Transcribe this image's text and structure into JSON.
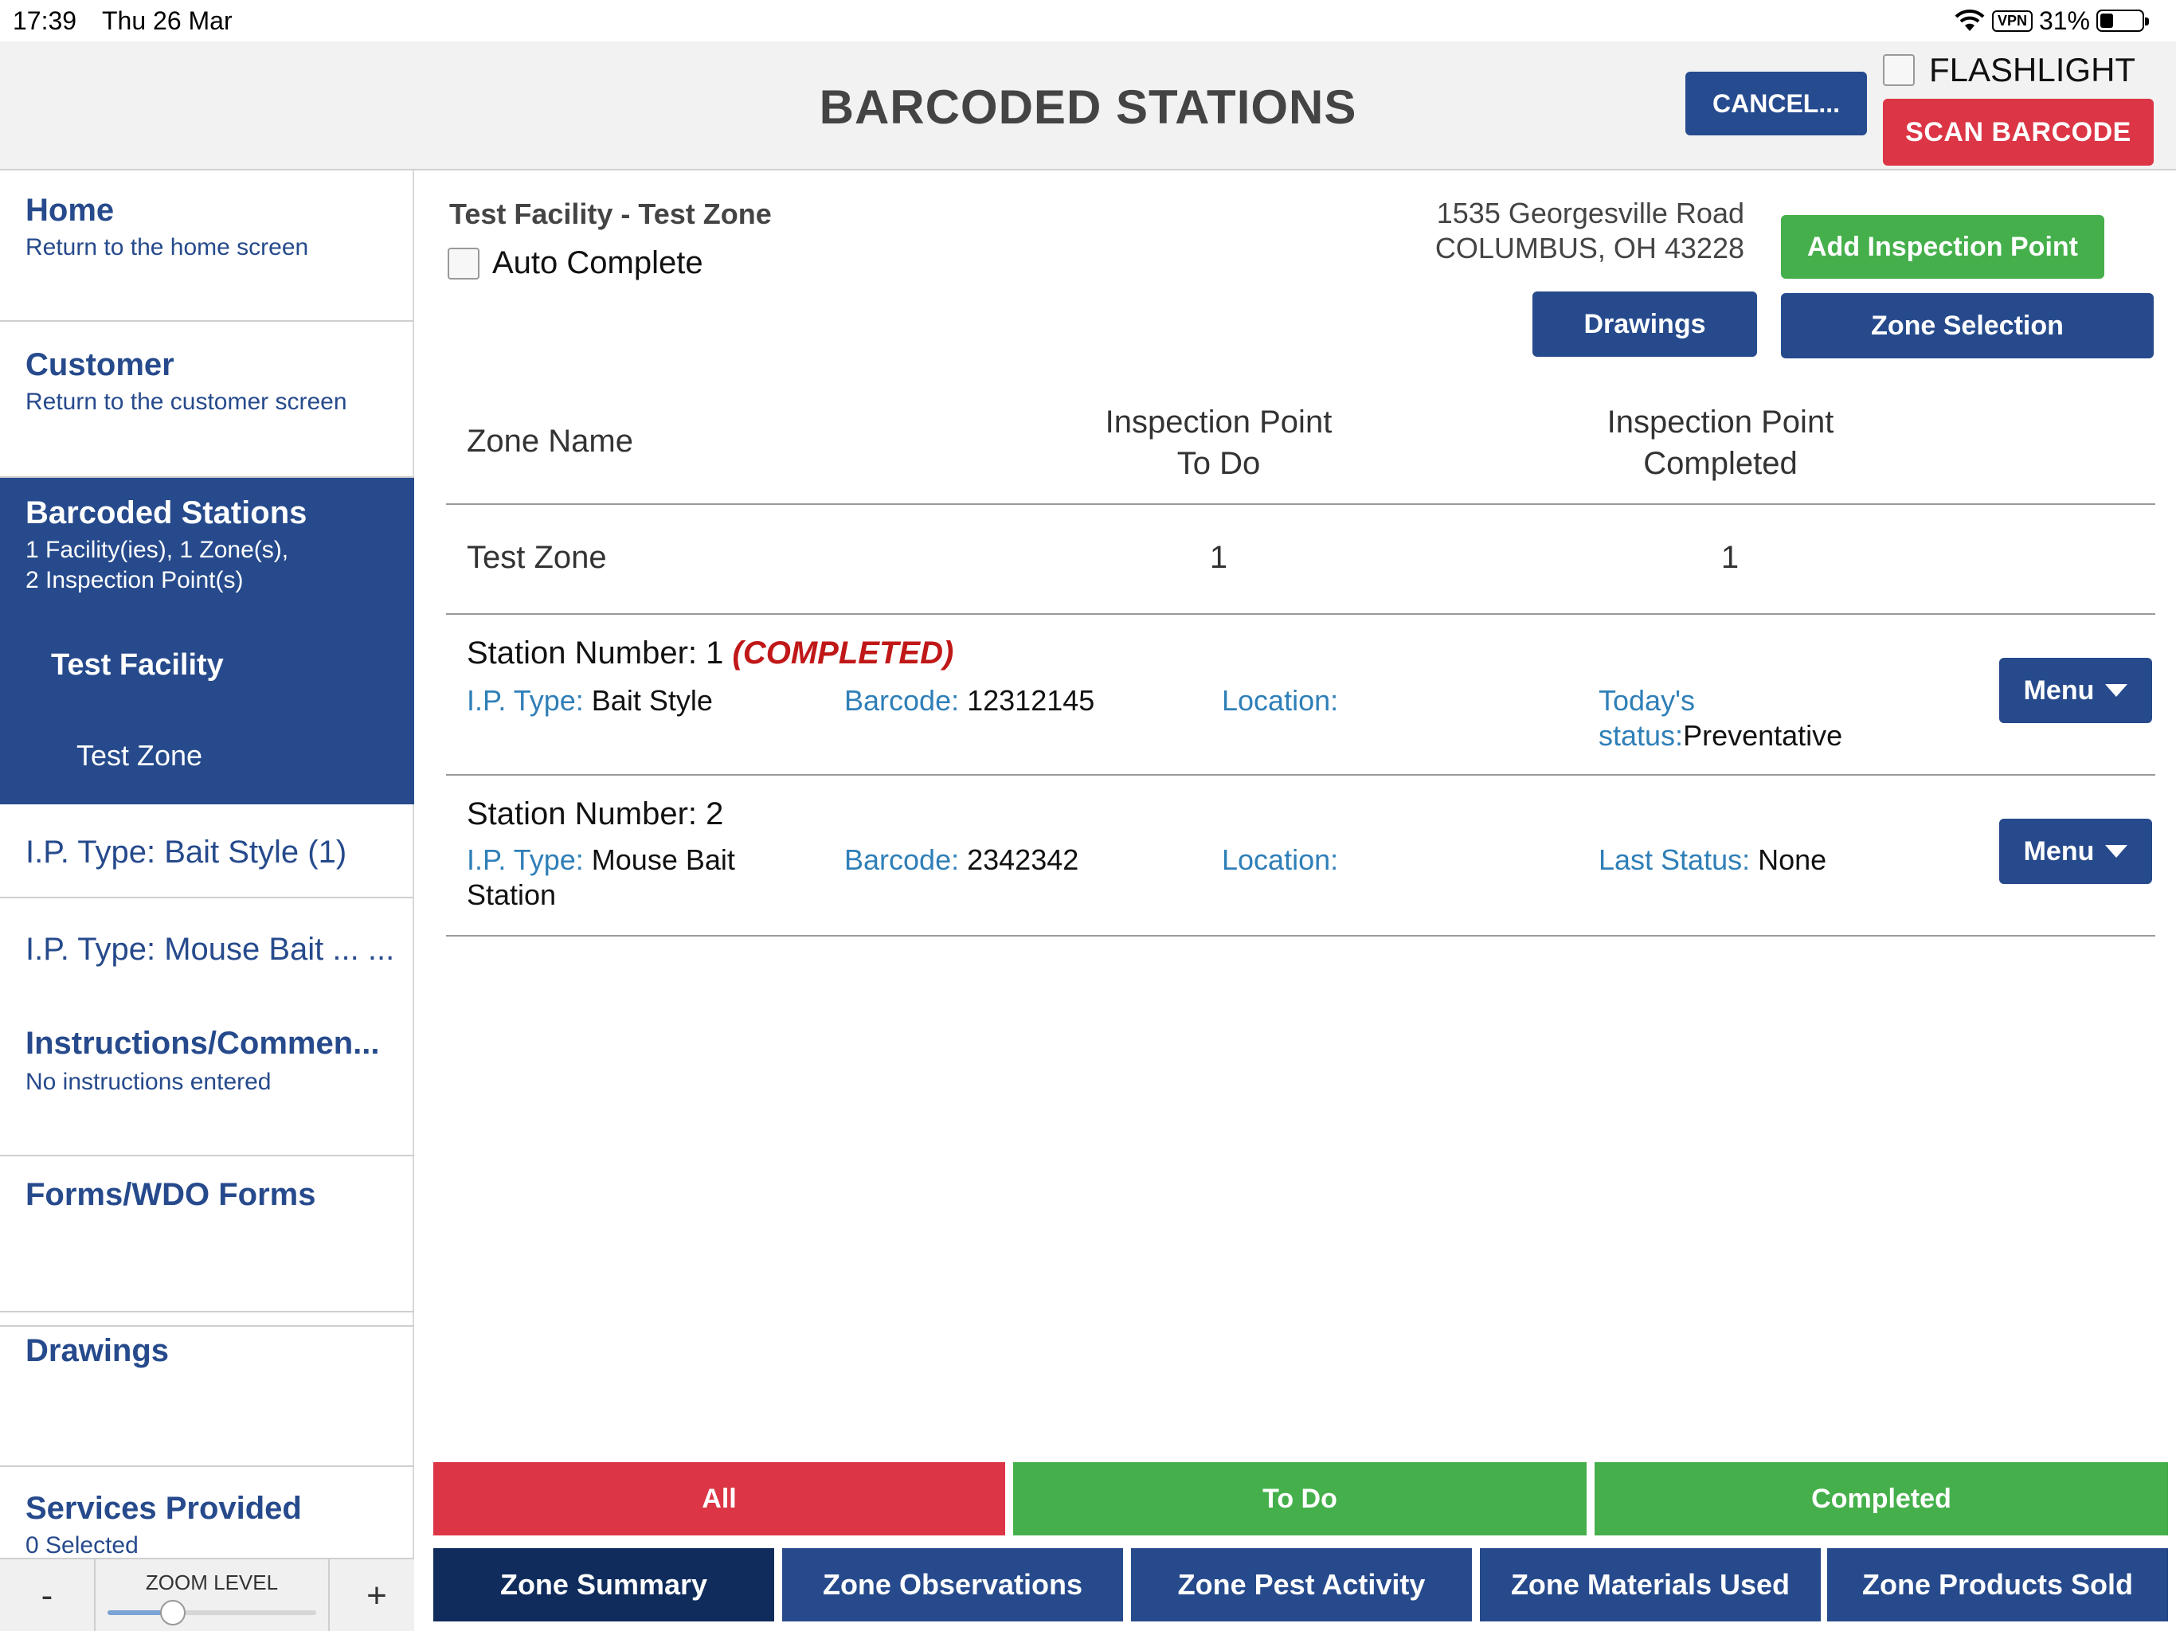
{
  "status_bar": {
    "time": "17:39",
    "date": "Thu 26 Mar",
    "vpn": "VPN",
    "battery": "31%",
    "battery_level": 0.31
  },
  "header": {
    "title": "BARCODED STATIONS",
    "cancel_label": "CANCEL...",
    "flashlight_label": "FLASHLIGHT",
    "flashlight_checked": false,
    "scan_label": "SCAN BARCODE"
  },
  "sidebar": {
    "home": {
      "title": "Home",
      "subtitle": "Return to the home screen"
    },
    "customer": {
      "title": "Customer",
      "subtitle": "Return to the customer screen"
    },
    "barcoded": {
      "title": "Barcoded Stations",
      "subtitle_line1": "1 Facility(ies), 1 Zone(s),",
      "subtitle_line2": "2 Inspection Point(s)",
      "facility": "Test Facility",
      "zone": "Test Zone"
    },
    "ip_type_1": "I.P. Type: Bait Style (1)",
    "ip_type_2": "I.P. Type: Mouse Bait ... ...",
    "instructions": {
      "title": "Instructions/Commen...",
      "subtitle": "No instructions entered"
    },
    "forms": {
      "title": "Forms/WDO Forms"
    },
    "drawings": {
      "title": "Drawings"
    },
    "services": {
      "title": "Services Provided",
      "subtitle": "0 Selected"
    },
    "zoom": {
      "minus": "-",
      "label": "ZOOM LEVEL",
      "plus": "+",
      "level": 0.25
    }
  },
  "main": {
    "facility_zone": "Test Facility - Test Zone",
    "auto_complete_label": "Auto Complete",
    "auto_complete_checked": false,
    "address_line1": "1535 Georgesville Road",
    "address_line2": "COLUMBUS, OH 43228",
    "add_inspection_point": "Add Inspection Point",
    "drawings_button": "Drawings",
    "zone_selection_button": "Zone Selection",
    "zone_table": {
      "headers": [
        "Zone Name",
        "Inspection Point",
        "To Do",
        "Inspection Point",
        "Completed"
      ],
      "rows": [
        {
          "name": "Test Zone",
          "todo": "1",
          "completed": "1"
        }
      ]
    },
    "stations": [
      {
        "number_label": "Station Number: 1",
        "completed_tag": "(COMPLETED)",
        "ip_type_label": "I.P. Type:",
        "ip_type": "Bait Style",
        "barcode_label": "Barcode:",
        "barcode": "12312145",
        "location_label": "Location:",
        "status_label_1": "Today's",
        "status_label_2": "status:",
        "status": "Preventative",
        "menu": "Menu"
      },
      {
        "number_label": "Station Number: 2",
        "ip_type_label": "I.P. Type:",
        "ip_type_1": "Mouse Bait",
        "ip_type_2": "Station",
        "barcode_label": "Barcode:",
        "barcode": "2342342",
        "location_label": "Location:",
        "status_label": "Last Status:",
        "status": "None",
        "menu": "Menu"
      }
    ]
  },
  "filters": [
    "All",
    "To Do",
    "Completed"
  ],
  "tabs": [
    "Zone Summary",
    "Zone Observations",
    "Zone Pest Activity",
    "Zone Materials Used",
    "Zone Products Sold"
  ],
  "colors": {
    "navy": "#264a8c",
    "navy_active": "#0f2c5c",
    "red": "#dc3545",
    "green": "#45b04b",
    "link_blue": "#2f7fb8",
    "completed_red": "#c01818"
  }
}
